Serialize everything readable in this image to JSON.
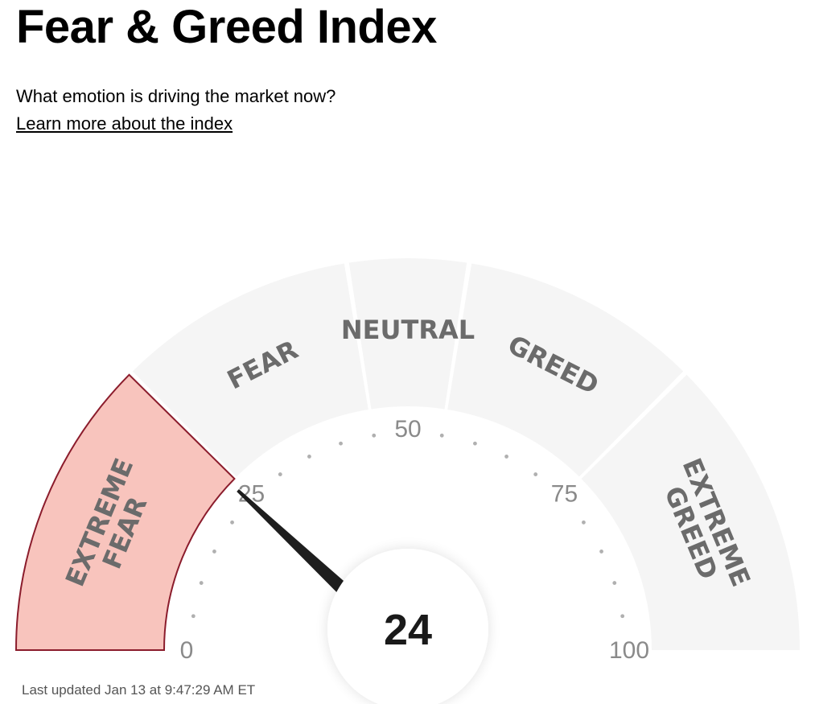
{
  "header": {
    "title": "Fear & Greed Index",
    "subtitle": "What emotion is driving the market now?",
    "learn_more": "Learn more about the index"
  },
  "gauge": {
    "value": 24,
    "value_label": "24",
    "min": 0,
    "max": 100,
    "segments": [
      {
        "name": "extreme-fear",
        "lines": [
          "EXTREME",
          "FEAR"
        ],
        "from": 0,
        "to": 25,
        "active": true
      },
      {
        "name": "fear",
        "lines": [
          "FEAR"
        ],
        "from": 25,
        "to": 45,
        "active": false
      },
      {
        "name": "neutral",
        "lines": [
          "NEUTRAL"
        ],
        "from": 45,
        "to": 55,
        "active": false
      },
      {
        "name": "greed",
        "lines": [
          "GREED"
        ],
        "from": 55,
        "to": 75,
        "active": false
      },
      {
        "name": "extreme-greed",
        "lines": [
          "EXTREME",
          "GREED"
        ],
        "from": 75,
        "to": 100,
        "active": false
      }
    ],
    "tick_labels": [
      {
        "value": 0,
        "text": "0"
      },
      {
        "value": 25,
        "text": "25"
      },
      {
        "value": 50,
        "text": "50"
      },
      {
        "value": 75,
        "text": "75"
      },
      {
        "value": 100,
        "text": "100"
      }
    ],
    "colors": {
      "inactive_fill": "#f5f5f5",
      "active_fill": "#f8c4bd",
      "active_stroke": "#8b1c2c",
      "label_color": "#6b6b6b",
      "needle": "#1e1e1e",
      "dots": "#b0b0b0"
    }
  },
  "footer": {
    "last_updated_label": "Last updated",
    "last_updated_value": "Jan 13 at 9:47:29 AM ET"
  }
}
